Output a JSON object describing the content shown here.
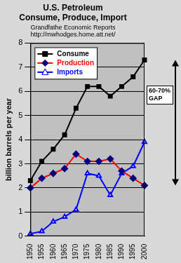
{
  "chart_data": {
    "type": "line",
    "title": [
      "U.S. Petroleum",
      "Consume, Produce, Import"
    ],
    "subtitle": [
      "Grandfathe Economic Reports",
      "http://mwhodges.home.att.net/"
    ],
    "y_label": "billion barrels per year",
    "categories": [
      "1950",
      "1955",
      "1960",
      "1965",
      "1970",
      "1975",
      "1980",
      "1985",
      "1990",
      "1995",
      "2000"
    ],
    "series": [
      {
        "name": "Consume",
        "color": "#000000",
        "marker": "square",
        "values": [
          2.3,
          3.1,
          3.6,
          4.2,
          5.3,
          6.2,
          6.2,
          5.8,
          6.2,
          6.6,
          7.3
        ]
      },
      {
        "name": "Production",
        "color": "#ff0000",
        "marker": "diamond",
        "values": [
          2.0,
          2.4,
          2.6,
          2.8,
          3.4,
          3.1,
          3.1,
          3.2,
          2.7,
          2.4,
          2.1
        ]
      },
      {
        "name": "Imports",
        "color": "#0000ff",
        "marker": "triangle",
        "values": [
          0.1,
          0.2,
          0.6,
          0.8,
          1.1,
          2.6,
          2.5,
          1.7,
          2.6,
          2.9,
          3.9
        ]
      }
    ],
    "ylim": [
      0,
      8
    ],
    "yticks": [
      0,
      1,
      2,
      3,
      4,
      5,
      6,
      7,
      8
    ],
    "grid": true,
    "legend": "upper left",
    "annotations": [
      {
        "text": "60-70% GAP"
      }
    ]
  }
}
